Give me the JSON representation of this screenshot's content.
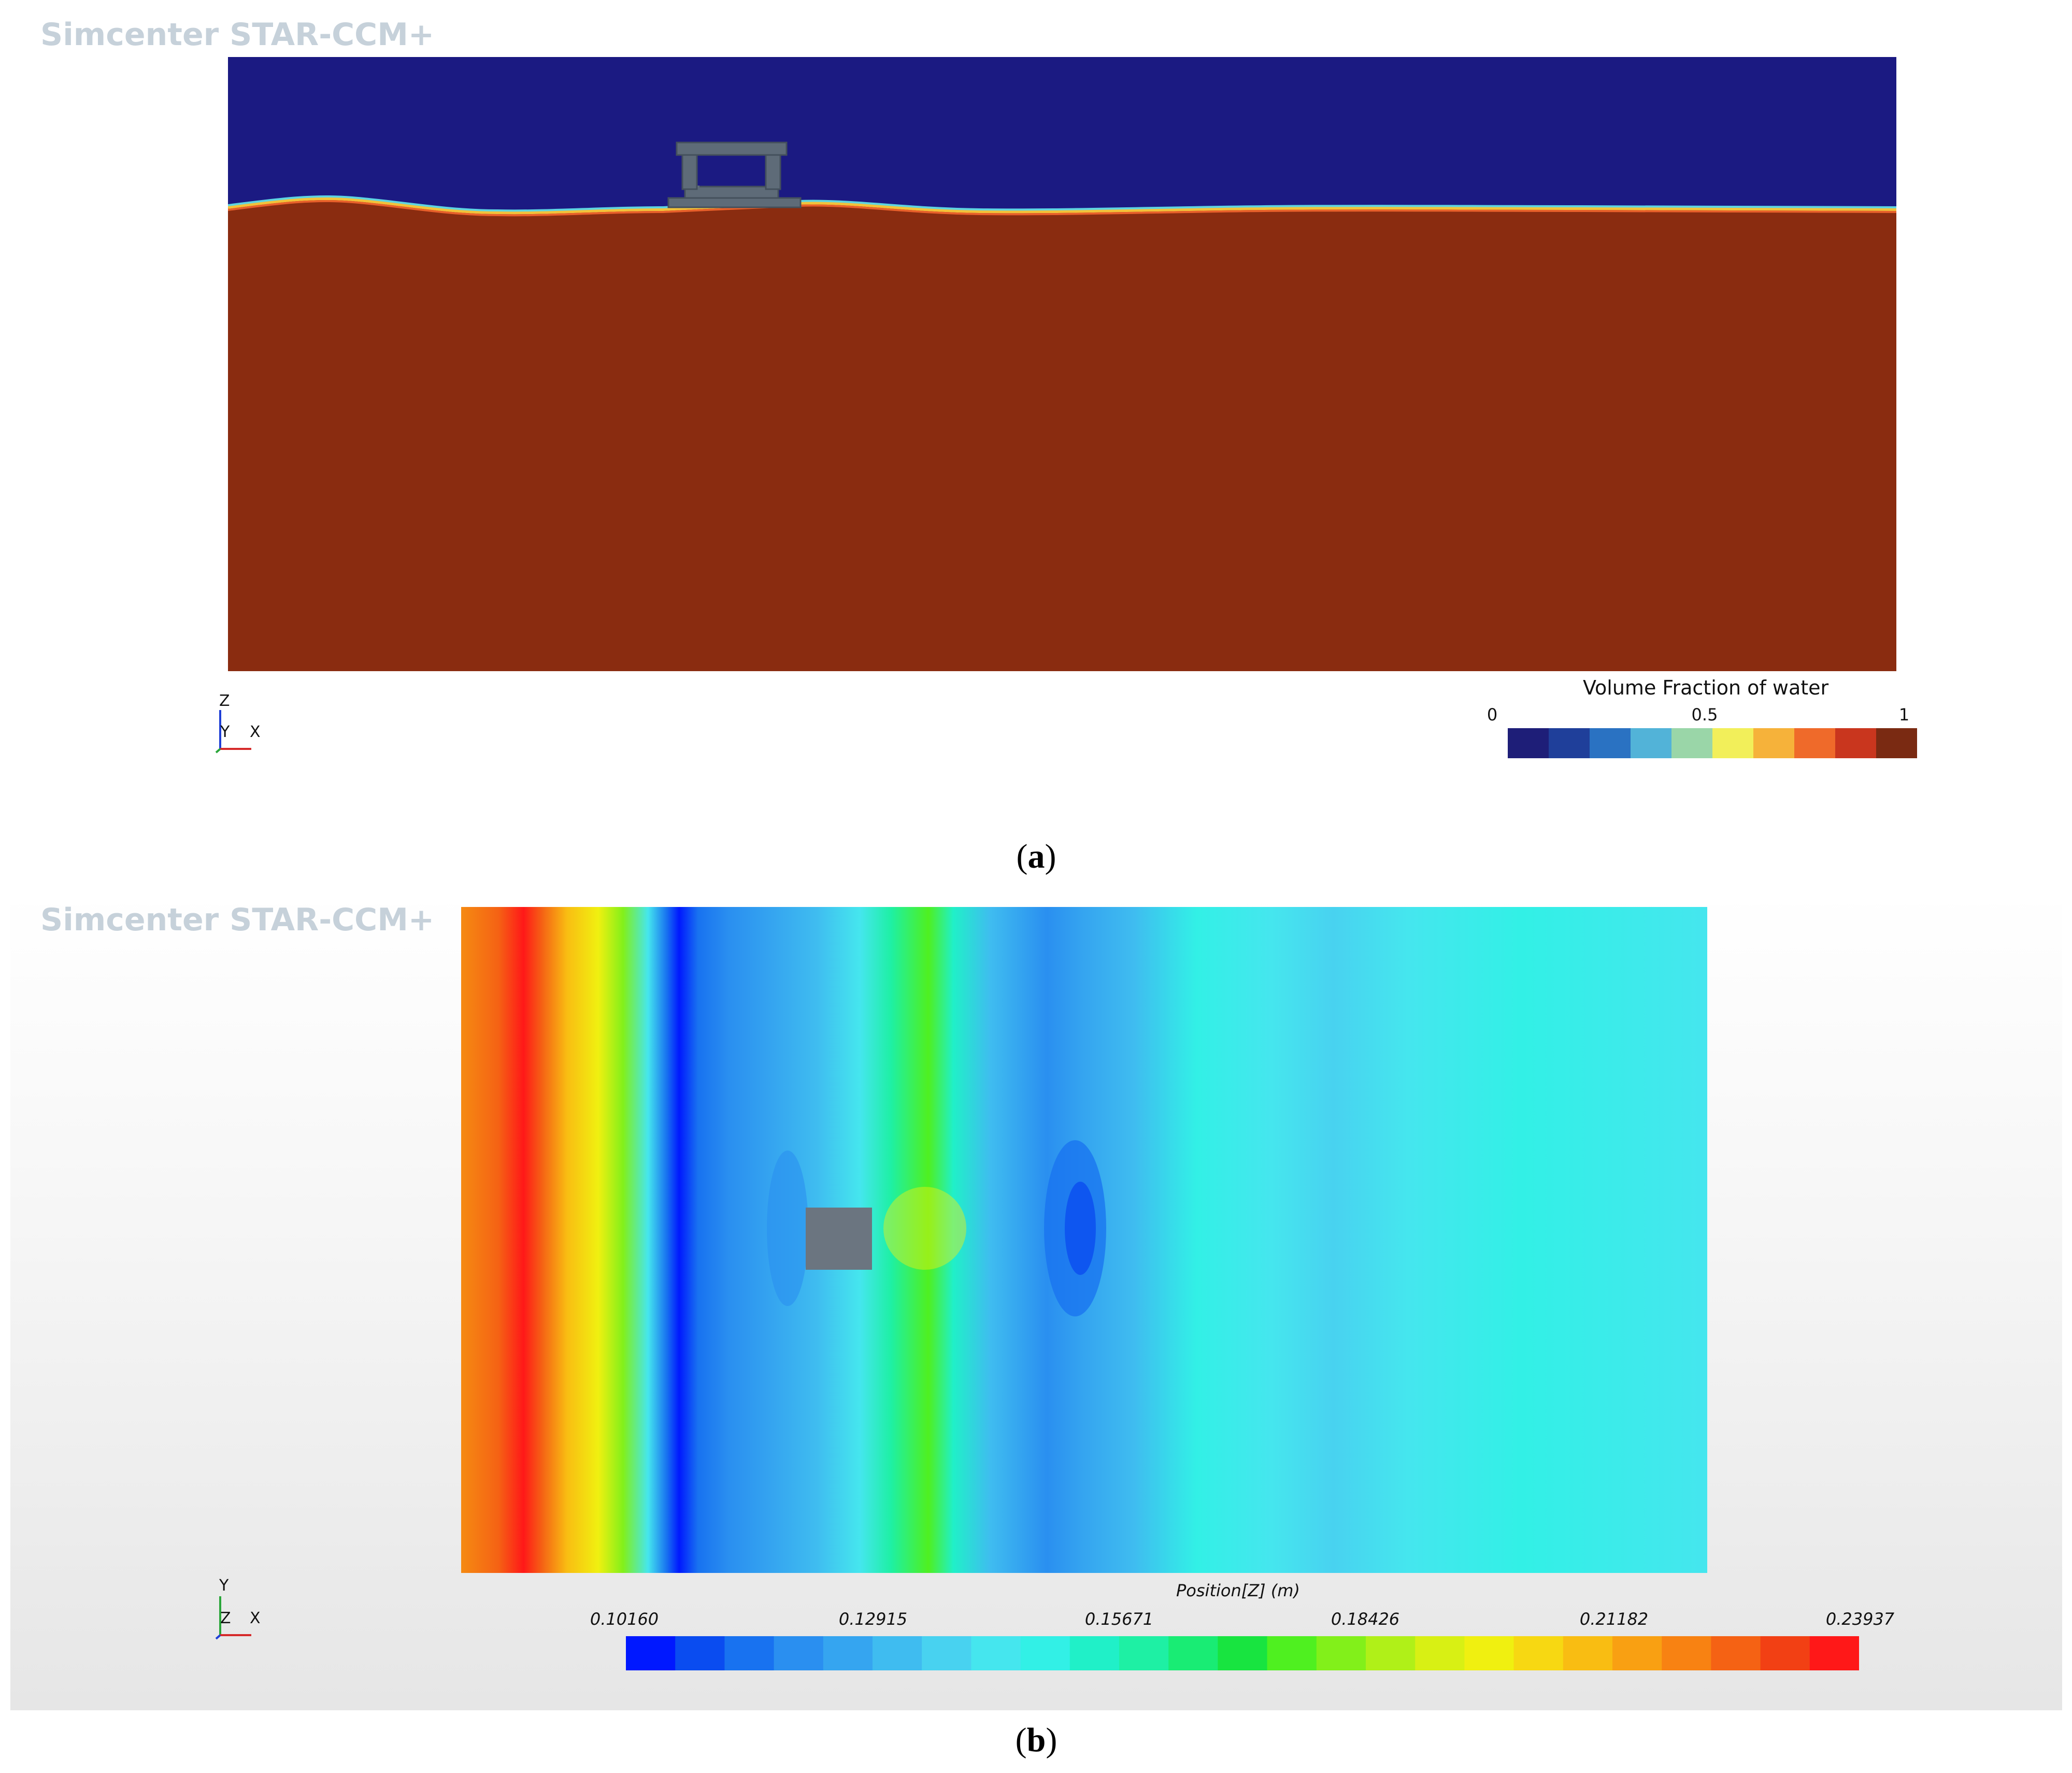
{
  "panel_a": {
    "brand": "Simcenter STAR-CCM+",
    "colorbar": {
      "title": "Volume Fraction of water",
      "ticks": [
        "0",
        "0.5",
        "1"
      ],
      "colors": [
        "#1e1e78",
        "#1f3f9a",
        "#2a72c2",
        "#52b3d8",
        "#9ad6a8",
        "#f2ef5a",
        "#f6b23a",
        "#ef6a2a",
        "#c9361e",
        "#7a2a12"
      ]
    },
    "triad": {
      "vertical": "Z",
      "out": "Y",
      "horizontal": "X"
    },
    "caption_letter": "a",
    "colors": {
      "air": "#1b1a82",
      "water": "#8a2c10",
      "body": "#5e6b78"
    }
  },
  "panel_b": {
    "brand": "Simcenter STAR-CCM+",
    "colorbar": {
      "title": "Position[Z] (m)",
      "ticks": [
        "0.10160",
        "0.12915",
        "0.15671",
        "0.18426",
        "0.21182",
        "0.23937"
      ],
      "colors": [
        "#0018ff",
        "#0a4cf0",
        "#1872f0",
        "#2a8ff0",
        "#35a5f0",
        "#3fbcf0",
        "#48d2f0",
        "#45e6ee",
        "#32f0e6",
        "#20f0c8",
        "#1ef0a4",
        "#19ec74",
        "#18e440",
        "#4ff020",
        "#82f01a",
        "#b0f018",
        "#d8f014",
        "#f0f010",
        "#f7d812",
        "#f9bd12",
        "#f9a012",
        "#f88212",
        "#f56214",
        "#f24014",
        "#ff1818"
      ]
    },
    "triad": {
      "vertical": "Y",
      "out": "Z",
      "horizontal": "X"
    },
    "caption_letter": "b",
    "colors": {
      "body": "#6b7580"
    }
  }
}
